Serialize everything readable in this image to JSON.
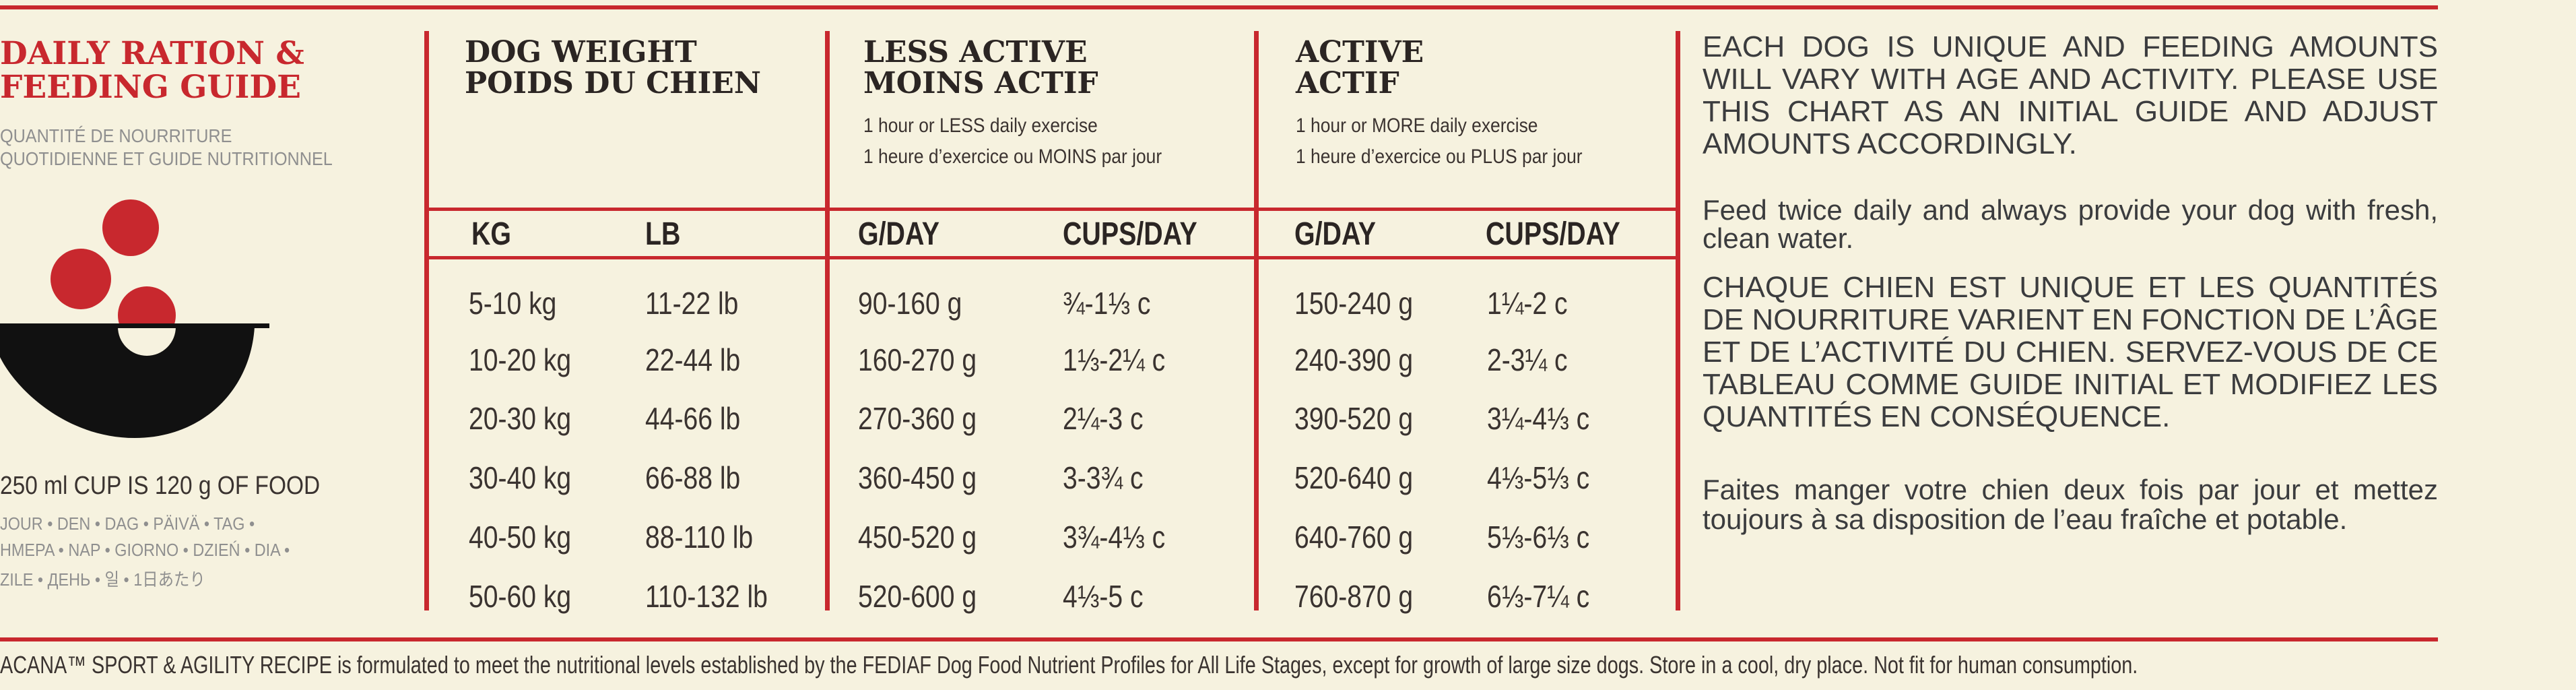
{
  "left": {
    "title_line1": "DAILY RATION &",
    "title_line2": "FEEDING GUIDE",
    "subtitle_line1": "QUANTITÉ DE NOURRITURE",
    "subtitle_line2": "QUOTIDIENNE ET GUIDE NUTRITIONNEL",
    "cup_note": "250 ml CUP IS 120 g OF FOOD",
    "day_line1": "JOUR • DEN • DAG • PÄIVÄ • TAG •",
    "day_line2": "HMEPA • NAP • GIORNO • DZIEŃ • DIA •",
    "day_line3": "ZILE • ДЕНЬ • 일 • 1日あたり"
  },
  "columns": {
    "weight": {
      "title1": "DOG WEIGHT",
      "title2": "POIDS DU CHIEN",
      "h1": "KG",
      "h2": "LB"
    },
    "less": {
      "title1": "LESS ACTIVE",
      "title2": "MOINS ACTIF",
      "sub1": "1 hour or LESS daily exercise",
      "sub2": "1 heure d’exercice ou MOINS par jour",
      "h1": "G/DAY",
      "h2": "CUPS/DAY"
    },
    "active": {
      "title1": "ACTIVE",
      "title2": "ACTIF",
      "sub1": "1 hour or MORE daily exercise",
      "sub2": "1 heure d’exercice ou PLUS par jour",
      "h1": "G/DAY",
      "h2": "CUPS/DAY"
    }
  },
  "rows": [
    {
      "kg": "5-10 kg",
      "lb": "11-22 lb",
      "less_g": "90-160 g",
      "less_c": "¾-1⅓ c",
      "act_g": "150-240 g",
      "act_c": "1¼-2 c"
    },
    {
      "kg": "10-20 kg",
      "lb": "22-44 lb",
      "less_g": "160-270 g",
      "less_c": "1⅓-2¼ c",
      "act_g": "240-390 g",
      "act_c": "2-3¼ c"
    },
    {
      "kg": "20-30 kg",
      "lb": "44-66 lb",
      "less_g": "270-360 g",
      "less_c": "2¼-3 c",
      "act_g": "390-520 g",
      "act_c": "3¼-4⅓ c"
    },
    {
      "kg": "30-40 kg",
      "lb": "66-88 lb",
      "less_g": "360-450 g",
      "less_c": "3-3¾ c",
      "act_g": "520-640 g",
      "act_c": "4⅓-5⅓ c"
    },
    {
      "kg": "40-50 kg",
      "lb": "88-110 lb",
      "less_g": "450-520 g",
      "less_c": "3¾-4⅓ c",
      "act_g": "640-760 g",
      "act_c": "5⅓-6⅓ c"
    },
    {
      "kg": "50-60 kg",
      "lb": "110-132 lb",
      "less_g": "520-600 g",
      "less_c": "4⅓-5 c",
      "act_g": "760-870 g",
      "act_c": "6⅓-7¼ c"
    }
  ],
  "right": {
    "p1": "EACH DOG IS UNIQUE AND FEEDING AMOUNTS WILL VARY WITH AGE AND ACTIVITY. PLEASE USE THIS CHART AS AN INITIAL GUIDE AND ADJUST AMOUNTS ACCORDINGLY.",
    "p2": "Feed twice daily and always provide your dog with fresh, clean water.",
    "p3": "CHAQUE CHIEN EST UNIQUE ET LES QUANTITÉS DE NOURRITURE VARIENT EN FONCTION DE L’ÂGE ET DE L’ACTIVITÉ DU CHIEN. SERVEZ-VOUS DE CE TABLEAU COMME GUIDE INITIAL ET MODIFIEZ LES QUANTITÉS EN CONSÉQUENCE.",
    "p4": "Faites manger votre chien deux fois par jour et mettez toujours à sa disposition de l’eau fraîche et potable."
  },
  "footer": "ACANA™ SPORT & AGILITY RECIPE is formulated to meet the nutritional levels established by the FEDIAF Dog Food Nutrient Profiles for All Life Stages, except for growth of large size dogs. Store in a cool, dry place. Not fit for human consumption.",
  "colors": {
    "red": "#c8282e",
    "background": "#f6f2df",
    "dark": "#2b2523"
  },
  "icons": [
    "food-bowl-icon"
  ]
}
